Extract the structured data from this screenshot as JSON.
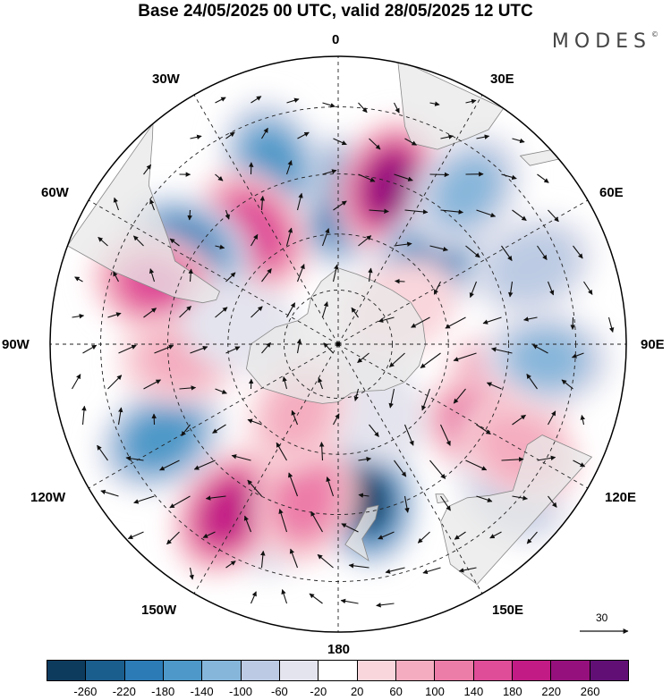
{
  "header": {
    "title": "Base 24/05/2025 00 UTC, valid 28/05/2025 12 UTC",
    "brand": "MODES",
    "brand_mark": "©"
  },
  "map": {
    "projection": "south-polar-stereographic",
    "longitude_labels": {
      "n": "0",
      "nw1": "30W",
      "nw2": "60W",
      "w": "90W",
      "sw1": "120W",
      "sw2": "150W",
      "s": "180",
      "se2": "150E",
      "se1": "120E",
      "e": "90E",
      "ne2": "60E",
      "ne1": "30E"
    },
    "reference_vector_label": "30",
    "colors": {
      "land": "#e8e8e8",
      "coast": "#888888",
      "grid": "#222222",
      "arrow": "#111111"
    },
    "anomalies": [
      {
        "lon": 0,
        "lat": -52,
        "value": -200
      },
      {
        "lon": 18,
        "lat": -46,
        "value": 240
      },
      {
        "lon": -20,
        "lat": -40,
        "value": -150
      },
      {
        "lon": -37,
        "lat": -52,
        "value": 170
      },
      {
        "lon": -58,
        "lat": -43,
        "value": -200
      },
      {
        "lon": -72,
        "lat": -40,
        "value": 150
      },
      {
        "lon": 48,
        "lat": -56,
        "value": -200
      },
      {
        "lon": 40,
        "lat": -38,
        "value": -100
      },
      {
        "lon": 68,
        "lat": -36,
        "value": -80
      },
      {
        "lon": 102,
        "lat": -43,
        "value": 140
      },
      {
        "lon": 94,
        "lat": -36,
        "value": -100
      },
      {
        "lon": 120,
        "lat": -45,
        "value": 150
      },
      {
        "lon": 130,
        "lat": -32,
        "value": -60
      },
      {
        "lon": 120,
        "lat": -36,
        "value": 80
      },
      {
        "lon": 170,
        "lat": -48,
        "value": -260
      },
      {
        "lon": -160,
        "lat": -42,
        "value": -60
      },
      {
        "lon": -147,
        "lat": -38,
        "value": 200
      },
      {
        "lon": -168,
        "lat": -48,
        "value": 120
      },
      {
        "lon": -118,
        "lat": -38,
        "value": -170
      },
      {
        "lon": -95,
        "lat": -48,
        "value": 60
      },
      {
        "lon": 150,
        "lat": -70,
        "value": -50
      },
      {
        "lon": -150,
        "lat": -68,
        "value": 60
      },
      {
        "lon": -80,
        "lat": -63,
        "value": -40
      },
      {
        "lon": 60,
        "lat": -70,
        "value": 40
      }
    ],
    "vortices": [
      {
        "lon": 0,
        "lat": -52,
        "sense": 1
      },
      {
        "lon": 18,
        "lat": -46,
        "sense": -1
      },
      {
        "lon": -58,
        "lat": -43,
        "sense": 1
      },
      {
        "lon": -37,
        "lat": -52,
        "sense": -1
      },
      {
        "lon": -72,
        "lat": -40,
        "sense": -1
      },
      {
        "lon": 48,
        "lat": -56,
        "sense": 1
      },
      {
        "lon": 170,
        "lat": -48,
        "sense": 1
      },
      {
        "lon": -147,
        "lat": -38,
        "sense": -1
      },
      {
        "lon": -118,
        "lat": -38,
        "sense": 1
      },
      {
        "lon": 102,
        "lat": -43,
        "sense": -1
      },
      {
        "lon": 94,
        "lat": -36,
        "sense": 1
      },
      {
        "lon": 120,
        "lat": -45,
        "sense": -1
      },
      {
        "lon": 130,
        "lat": -32,
        "sense": 1
      }
    ]
  },
  "colorbar": {
    "colors": [
      "#0d3b5e",
      "#1a5e8e",
      "#2c7bb6",
      "#4d98c8",
      "#86b6da",
      "#bccbe3",
      "#e4e4ee",
      "#ffffff",
      "#f9d6dc",
      "#f4adc0",
      "#ec7ca8",
      "#df4c97",
      "#c21b85",
      "#96107d",
      "#620f75"
    ],
    "ticks": [
      "-260",
      "-220",
      "-180",
      "-140",
      "-100",
      "-60",
      "-20",
      "20",
      "60",
      "100",
      "140",
      "180",
      "220",
      "260"
    ]
  }
}
